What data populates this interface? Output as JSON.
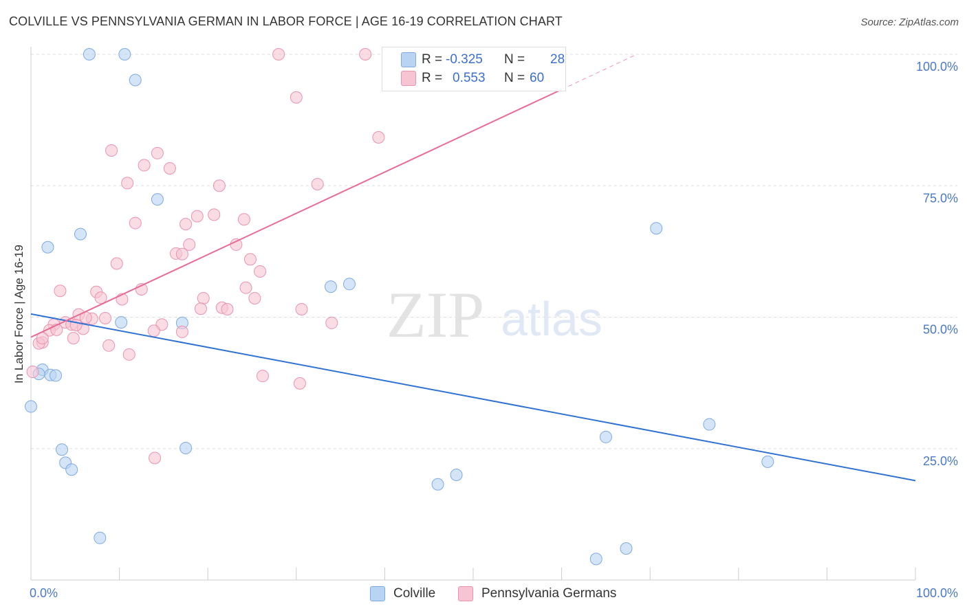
{
  "title": "COLVILLE VS PENNSYLVANIA GERMAN IN LABOR FORCE | AGE 16-19 CORRELATION CHART",
  "source": "Source: ZipAtlas.com",
  "watermark": {
    "zip": "ZIP",
    "atlas": "atlas"
  },
  "colors": {
    "blue_fill": "#b9d3f3",
    "blue_stroke": "#7ea9e3",
    "blue_line": "#2f72d3",
    "pink_fill": "#f7c4d3",
    "pink_stroke": "#ea93ad",
    "pink_line": "#e96b95",
    "grid": "#dddddd",
    "axis_text": "#4a78c8"
  },
  "legend": {
    "rows": [
      {
        "series": "Colville",
        "r_label": "R =",
        "r_value": "-0.325",
        "n_label": "N =",
        "n_value": "28"
      },
      {
        "series": "Pennsylvania Germans",
        "r_label": "R =",
        "r_value": "0.553",
        "n_label": "N =",
        "n_value": "60"
      }
    ]
  },
  "bottom_legend": [
    "Colville",
    "Pennsylvania Germans"
  ],
  "chart_data": {
    "type": "scatter",
    "title": "COLVILLE VS PENNSYLVANIA GERMAN IN LABOR FORCE | AGE 16-19 CORRELATION CHART",
    "xlabel": "",
    "ylabel": "In Labor Force | Age 16-19",
    "xlim": [
      0,
      100
    ],
    "ylim": [
      0,
      100
    ],
    "x_tick_labels": [
      "0.0%",
      "100.0%"
    ],
    "y_tick_values": [
      25,
      50,
      75,
      100
    ],
    "y_tick_labels": [
      "25.0%",
      "50.0%",
      "75.0%",
      "100.0%"
    ],
    "grid": true,
    "series": [
      {
        "name": "Colville",
        "r": -0.325,
        "n": 28,
        "trend": {
          "x0": 0,
          "y0": 50.6,
          "x1": 100,
          "y1": 18.9
        },
        "points": [
          [
            6.6,
            100
          ],
          [
            10.6,
            100
          ],
          [
            11.8,
            95.1
          ],
          [
            14.3,
            72.4
          ],
          [
            5.6,
            65.8
          ],
          [
            1.9,
            63.3
          ],
          [
            10.2,
            49
          ],
          [
            17.1,
            48.9
          ],
          [
            33.9,
            55.8
          ],
          [
            36,
            56.3
          ],
          [
            1.3,
            40
          ],
          [
            2.2,
            39
          ],
          [
            2.8,
            38.9
          ],
          [
            0,
            33
          ],
          [
            3.5,
            24.8
          ],
          [
            3.9,
            22.3
          ],
          [
            4.6,
            21
          ],
          [
            17.5,
            25.1
          ],
          [
            7.8,
            8
          ],
          [
            46,
            18.2
          ],
          [
            48.1,
            20
          ],
          [
            65,
            27.2
          ],
          [
            63.9,
            4
          ],
          [
            67.3,
            6
          ],
          [
            76.7,
            29.6
          ],
          [
            83.3,
            22.5
          ],
          [
            70.7,
            66.9
          ],
          [
            0.9,
            39.2
          ]
        ]
      },
      {
        "name": "Pennsylvania Germans",
        "r": 0.553,
        "n": 60,
        "trend": {
          "x0": 0,
          "y0": 46.2,
          "x1": 60,
          "y1": 93.3,
          "dashed_x1": 68.5,
          "dashed_y1": 100
        },
        "points": [
          [
            28,
            100
          ],
          [
            37.8,
            100
          ],
          [
            30,
            91.8
          ],
          [
            39.3,
            84.2
          ],
          [
            9.1,
            81.7
          ],
          [
            14.3,
            81.2
          ],
          [
            12.8,
            78.9
          ],
          [
            15.7,
            78.3
          ],
          [
            10.9,
            75.5
          ],
          [
            32.4,
            75.3
          ],
          [
            21.3,
            75
          ],
          [
            11.8,
            67.9
          ],
          [
            17.5,
            67.7
          ],
          [
            18.8,
            69.2
          ],
          [
            20.7,
            69.5
          ],
          [
            24.1,
            68.6
          ],
          [
            17.9,
            63.8
          ],
          [
            23.2,
            63.8
          ],
          [
            16.4,
            62.1
          ],
          [
            17.1,
            62
          ],
          [
            9.7,
            60.2
          ],
          [
            24.8,
            61
          ],
          [
            25.9,
            58.7
          ],
          [
            3.3,
            55
          ],
          [
            7.4,
            54.8
          ],
          [
            12.5,
            55.3
          ],
          [
            24.3,
            55.6
          ],
          [
            7.9,
            53.7
          ],
          [
            10.3,
            53.4
          ],
          [
            19.5,
            53.6
          ],
          [
            25.3,
            53.6
          ],
          [
            21.6,
            51.8
          ],
          [
            19.2,
            51.6
          ],
          [
            22.2,
            51.5
          ],
          [
            30.6,
            51.5
          ],
          [
            5.4,
            50.5
          ],
          [
            6.9,
            49.7
          ],
          [
            8.4,
            49.8
          ],
          [
            3.9,
            49
          ],
          [
            4.6,
            48.6
          ],
          [
            2.6,
            48.6
          ],
          [
            14.8,
            48.6
          ],
          [
            34,
            48.9
          ],
          [
            5.9,
            47.8
          ],
          [
            2.1,
            47.5
          ],
          [
            2.9,
            47.6
          ],
          [
            13.9,
            47.4
          ],
          [
            17.1,
            47.2
          ],
          [
            4.8,
            46
          ],
          [
            1.3,
            45.2
          ],
          [
            0.9,
            45
          ],
          [
            8.8,
            44.6
          ],
          [
            11.1,
            42.9
          ],
          [
            26.2,
            38.8
          ],
          [
            30.4,
            37.4
          ],
          [
            14,
            23.2
          ],
          [
            0.2,
            39.6
          ],
          [
            1.3,
            46
          ],
          [
            6.2,
            49.9
          ],
          [
            5.1,
            48.5
          ]
        ]
      }
    ]
  }
}
